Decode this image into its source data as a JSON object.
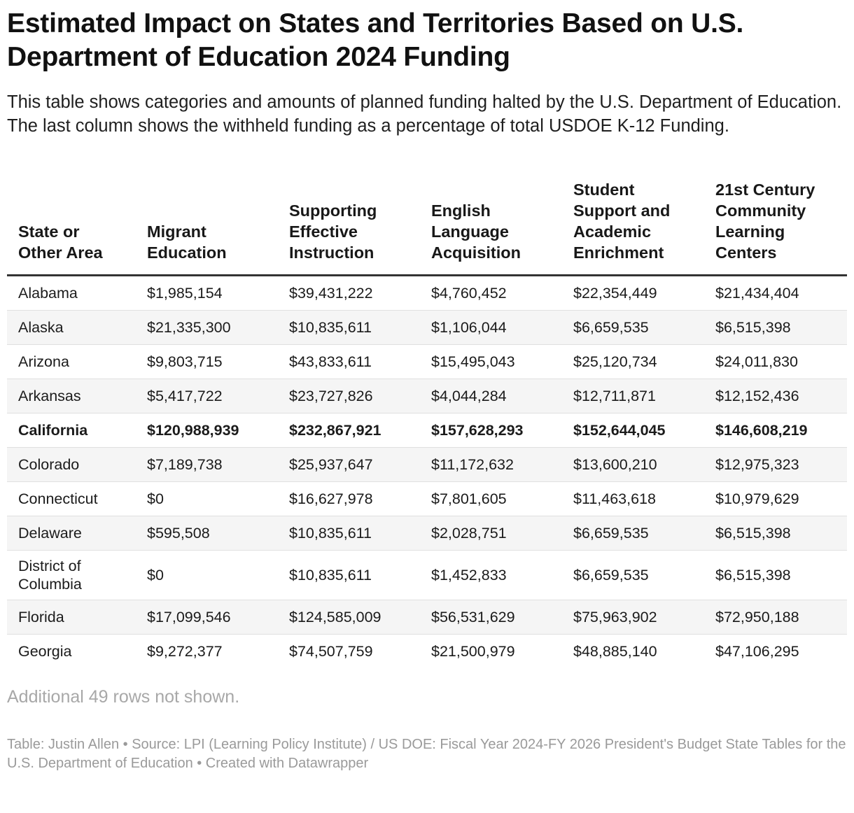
{
  "title": "Estimated Impact on States and Territories Based on U.S. Department of Education 2024 Funding",
  "description": "This table shows categories and amounts of planned funding halted by the U.S. Department of Education. The last column shows the withheld funding as a percentage of total USDOE K-12 Funding.",
  "note": "Additional 49 rows not shown.",
  "footer": "Table: Justin Allen • Source: LPI (Learning Policy Institute) / US DOE: Fiscal Year 2024-FY 2026 President's Budget State Tables for the U.S. Department of Education • Created with Datawrapper",
  "colors": {
    "text": "#181818",
    "muted": "#a8a8a8",
    "zebra": "#f5f5f5",
    "rule": "#333333"
  },
  "chart_data": {
    "type": "table",
    "columns": [
      "State or Other Area",
      "Migrant Education",
      "Supporting Effective Instruction",
      "English Language Acquisition",
      "Student Support and Academic Enrichment",
      "21st Century Community Learning Centers"
    ],
    "rows": [
      {
        "cells": [
          "Alabama",
          "$1,985,154",
          "$39,431,222",
          "$4,760,452",
          "$22,354,449",
          "$21,434,404"
        ],
        "bold": false
      },
      {
        "cells": [
          "Alaska",
          "$21,335,300",
          "$10,835,611",
          "$1,106,044",
          "$6,659,535",
          "$6,515,398"
        ],
        "bold": false
      },
      {
        "cells": [
          "Arizona",
          "$9,803,715",
          "$43,833,611",
          "$15,495,043",
          "$25,120,734",
          "$24,011,830"
        ],
        "bold": false
      },
      {
        "cells": [
          "Arkansas",
          "$5,417,722",
          "$23,727,826",
          "$4,044,284",
          "$12,711,871",
          "$12,152,436"
        ],
        "bold": false
      },
      {
        "cells": [
          "California",
          "$120,988,939",
          "$232,867,921",
          "$157,628,293",
          "$152,644,045",
          "$146,608,219"
        ],
        "bold": true
      },
      {
        "cells": [
          "Colorado",
          "$7,189,738",
          "$25,937,647",
          "$11,172,632",
          "$13,600,210",
          "$12,975,323"
        ],
        "bold": false
      },
      {
        "cells": [
          "Connecticut",
          "$0",
          "$16,627,978",
          "$7,801,605",
          "$11,463,618",
          "$10,979,629"
        ],
        "bold": false
      },
      {
        "cells": [
          "Delaware",
          "$595,508",
          "$10,835,611",
          "$2,028,751",
          "$6,659,535",
          "$6,515,398"
        ],
        "bold": false
      },
      {
        "cells": [
          "District of Columbia",
          "$0",
          "$10,835,611",
          "$1,452,833",
          "$6,659,535",
          "$6,515,398"
        ],
        "bold": false
      },
      {
        "cells": [
          "Florida",
          "$17,099,546",
          "$124,585,009",
          "$56,531,629",
          "$75,963,902",
          "$72,950,188"
        ],
        "bold": false
      },
      {
        "cells": [
          "Georgia",
          "$9,272,377",
          "$74,507,759",
          "$21,500,979",
          "$48,885,140",
          "$47,106,295"
        ],
        "bold": false
      }
    ]
  }
}
